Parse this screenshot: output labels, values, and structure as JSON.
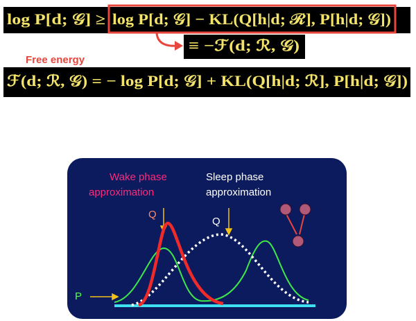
{
  "equations": {
    "bound_left": "log P[d; 𝒢] ≥",
    "bound_right": "log P[d; 𝒢] − KL(Q[h|d; ℛ], P[h|d; 𝒢])",
    "equivalence": "≡ −ℱ(d; ℛ, 𝒢)",
    "free_energy_label": "Free energy",
    "free_energy": "ℱ(d; ℛ, 𝒢) = − log P[d; 𝒢] + KL(Q[h|d; ℛ], P[h|d; 𝒢])"
  },
  "diagram": {
    "wake_label": [
      "Wake phase",
      "approximation"
    ],
    "sleep_label": [
      "Sleep phase",
      "approximation"
    ],
    "wake_q": "Q",
    "sleep_q": "Q",
    "p_label": "P"
  }
}
